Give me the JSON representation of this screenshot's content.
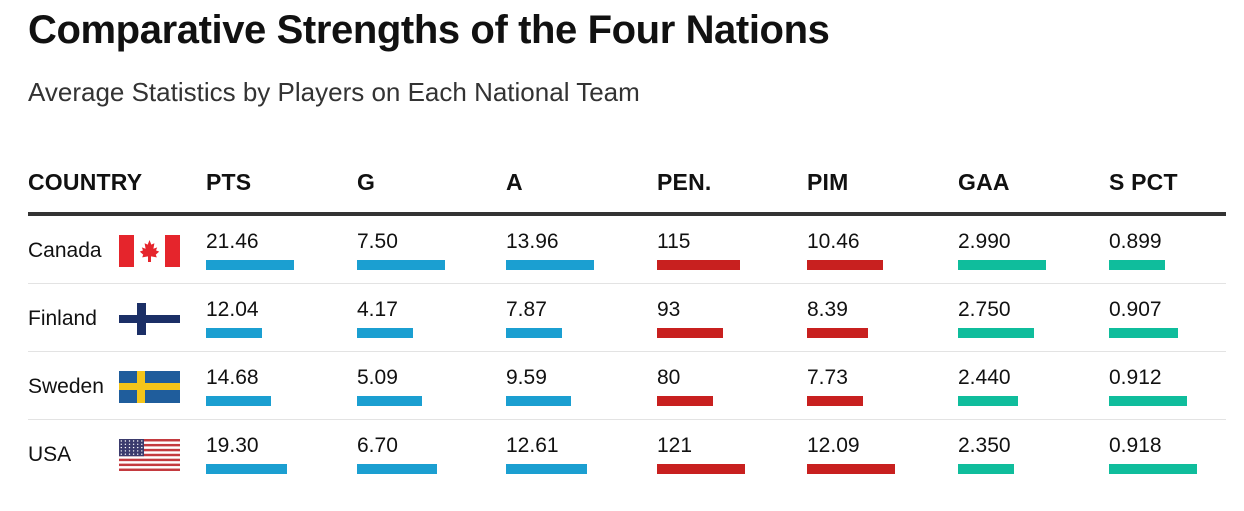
{
  "title": "Comparative Strengths of the Four Nations",
  "subtitle": "Average Statistics by Players on Each National Team",
  "colors": {
    "offense": "#1b9fd1",
    "penalty": "#c8201f",
    "goalie": "#0fbd9c"
  },
  "chart_data": {
    "type": "table",
    "title": "Comparative Strengths of the Four Nations",
    "subtitle": "Average Statistics by Players on Each National Team",
    "columns": [
      {
        "key": "country",
        "label": "COUNTRY"
      },
      {
        "key": "pts",
        "label": "PTS",
        "color": "offense"
      },
      {
        "key": "g",
        "label": "G",
        "color": "offense"
      },
      {
        "key": "a",
        "label": "A",
        "color": "offense"
      },
      {
        "key": "pen",
        "label": "PEN.",
        "color": "penalty"
      },
      {
        "key": "pim",
        "label": "PIM",
        "color": "penalty"
      },
      {
        "key": "gaa",
        "label": "GAA",
        "color": "goalie"
      },
      {
        "key": "spct",
        "label": "S PCT",
        "color": "goalie"
      }
    ],
    "rows": [
      {
        "country": "Canada",
        "flag": "canada-flag-icon",
        "pts": "21.46",
        "g": "7.50",
        "a": "13.96",
        "pen": "115",
        "pim": "10.46",
        "gaa": "2.990",
        "spct": "0.899"
      },
      {
        "country": "Finland",
        "flag": "finland-flag-icon",
        "pts": "12.04",
        "g": "4.17",
        "a": "7.87",
        "pen": "93",
        "pim": "8.39",
        "gaa": "2.750",
        "spct": "0.907"
      },
      {
        "country": "Sweden",
        "flag": "sweden-flag-icon",
        "pts": "14.68",
        "g": "5.09",
        "a": "9.59",
        "pen": "80",
        "pim": "7.73",
        "gaa": "2.440",
        "spct": "0.912"
      },
      {
        "country": "USA",
        "flag": "usa-flag-icon",
        "pts": "19.30",
        "g": "6.70",
        "a": "12.61",
        "pen": "121",
        "pim": "12.09",
        "gaa": "2.350",
        "spct": "0.918"
      }
    ]
  }
}
